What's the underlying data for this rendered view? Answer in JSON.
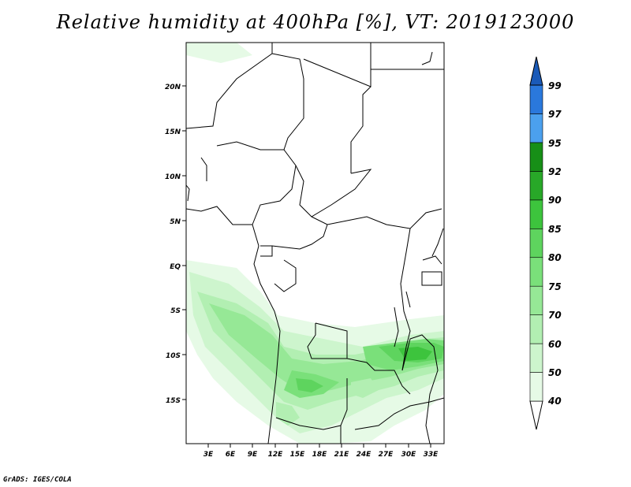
{
  "title": "Relative humidity at 400hPa [%], VT: 2019123000",
  "footer": "GrADS: IGES/COLA",
  "map": {
    "lat_labels": [
      "20N",
      "15N",
      "10N",
      "5N",
      "EQ",
      "5S",
      "10S",
      "15S"
    ],
    "lon_labels": [
      "3E",
      "6E",
      "9E",
      "12E",
      "15E",
      "18E",
      "21E",
      "24E",
      "27E",
      "30E",
      "33E"
    ]
  },
  "colorbar": {
    "labels": [
      "40",
      "50",
      "60",
      "70",
      "75",
      "80",
      "85",
      "90",
      "92",
      "95",
      "97",
      "99"
    ],
    "colors": [
      "#ffffff",
      "#e6fae6",
      "#cdf5cd",
      "#b2efb2",
      "#96e896",
      "#7ae07a",
      "#5ed45e",
      "#3dc43d",
      "#28a828",
      "#178f17",
      "#4ba0ee",
      "#2a78dc",
      "#1a5ab8"
    ]
  }
}
